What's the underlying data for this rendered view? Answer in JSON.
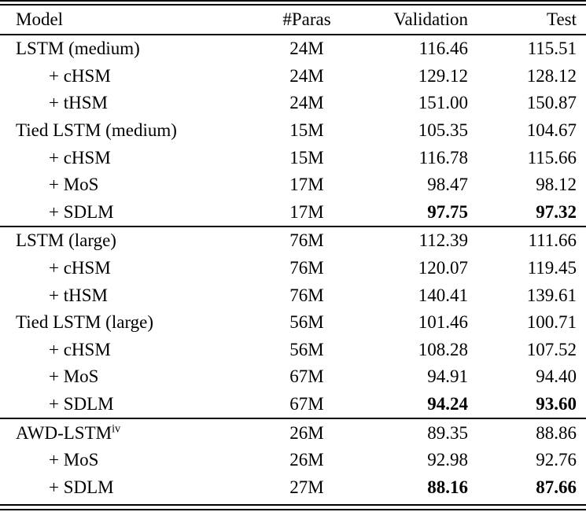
{
  "table": {
    "header": {
      "model": "Model",
      "paras": "#Paras",
      "validation": "Validation",
      "test": "Test"
    },
    "sections": [
      {
        "rows": [
          {
            "model": "LSTM (medium)",
            "indent": false,
            "paras": "24M",
            "validation": "116.46",
            "test": "115.51",
            "bold": false
          },
          {
            "model": "+ cHSM",
            "indent": true,
            "paras": "24M",
            "validation": "129.12",
            "test": "128.12",
            "bold": false
          },
          {
            "model": "+ tHSM",
            "indent": true,
            "paras": "24M",
            "validation": "151.00",
            "test": "150.87",
            "bold": false
          },
          {
            "model": "Tied LSTM (medium)",
            "indent": false,
            "paras": "15M",
            "validation": "105.35",
            "test": "104.67",
            "bold": false
          },
          {
            "model": "+ cHSM",
            "indent": true,
            "paras": "15M",
            "validation": "116.78",
            "test": "115.66",
            "bold": false
          },
          {
            "model": "+ MoS",
            "indent": true,
            "paras": "17M",
            "validation": "98.47",
            "test": "98.12",
            "bold": false
          },
          {
            "model": "+ SDLM",
            "indent": true,
            "paras": "17M",
            "validation": "97.75",
            "test": "97.32",
            "bold": true
          }
        ]
      },
      {
        "rows": [
          {
            "model": "LSTM (large)",
            "indent": false,
            "paras": "76M",
            "validation": "112.39",
            "test": "111.66",
            "bold": false
          },
          {
            "model": "+ cHSM",
            "indent": true,
            "paras": "76M",
            "validation": "120.07",
            "test": "119.45",
            "bold": false
          },
          {
            "model": "+ tHSM",
            "indent": true,
            "paras": "76M",
            "validation": "140.41",
            "test": "139.61",
            "bold": false
          },
          {
            "model": "Tied LSTM (large)",
            "indent": false,
            "paras": "56M",
            "validation": "101.46",
            "test": "100.71",
            "bold": false
          },
          {
            "model": "+ cHSM",
            "indent": true,
            "paras": "56M",
            "validation": "108.28",
            "test": "107.52",
            "bold": false
          },
          {
            "model": "+ MoS",
            "indent": true,
            "paras": "67M",
            "validation": "94.91",
            "test": "94.40",
            "bold": false
          },
          {
            "model": "+ SDLM",
            "indent": true,
            "paras": "67M",
            "validation": "94.24",
            "test": "93.60",
            "bold": true
          }
        ]
      },
      {
        "rows": [
          {
            "model": "AWD-LSTM",
            "sup": "iv",
            "indent": false,
            "paras": "26M",
            "validation": "89.35",
            "test": "88.86",
            "bold": false
          },
          {
            "model": "+ MoS",
            "indent": true,
            "paras": "26M",
            "validation": "92.98",
            "test": "92.76",
            "bold": false
          },
          {
            "model": "+ SDLM",
            "indent": true,
            "paras": "27M",
            "validation": "88.16",
            "test": "87.66",
            "bold": true
          }
        ]
      }
    ]
  }
}
